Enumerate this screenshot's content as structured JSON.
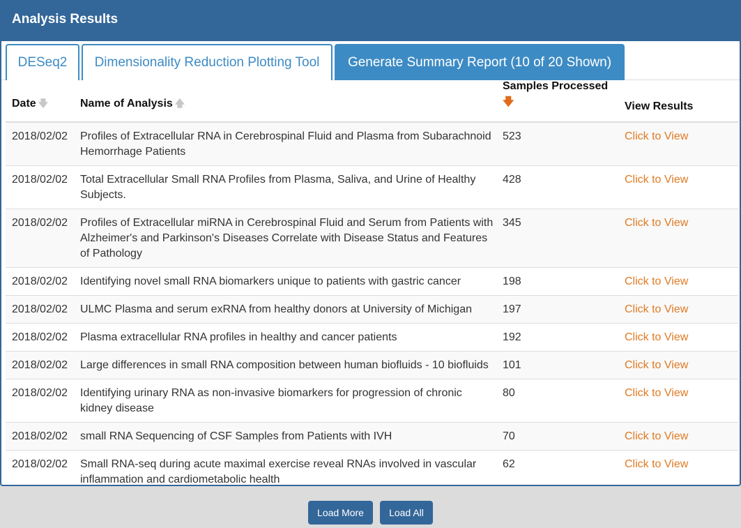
{
  "header": {
    "title": "Analysis Results"
  },
  "tabs": [
    {
      "label": "DESeq2"
    },
    {
      "label": "Dimensionality Reduction Plotting Tool"
    },
    {
      "label": "Generate Summary Report (10 of 20 Shown)"
    }
  ],
  "table": {
    "columns": {
      "date": "Date",
      "name": "Name of Analysis",
      "samples": "Samples Processed",
      "view": "View Results"
    },
    "rows": [
      {
        "date": "2018/02/02",
        "name": "Profiles of Extracellular RNA in Cerebrospinal Fluid and Plasma from Subarachnoid Hemorrhage Patients",
        "samples": "523",
        "view": "Click to View"
      },
      {
        "date": "2018/02/02",
        "name": "Total Extracellular Small RNA Profiles from Plasma, Saliva, and Urine of Healthy Subjects.",
        "samples": "428",
        "view": "Click to View"
      },
      {
        "date": "2018/02/02",
        "name": "Profiles of Extracellular miRNA in Cerebrospinal Fluid and Serum from Patients with Alzheimer's and Parkinson's Diseases Correlate with Disease Status and Features of Pathology",
        "samples": "345",
        "view": "Click to View"
      },
      {
        "date": "2018/02/02",
        "name": "Identifying novel small RNA biomarkers unique to patients with gastric cancer",
        "samples": "198",
        "view": "Click to View"
      },
      {
        "date": "2018/02/02",
        "name": "ULMC Plasma and serum exRNA from healthy donors at University of Michigan",
        "samples": "197",
        "view": "Click to View"
      },
      {
        "date": "2018/02/02",
        "name": "Plasma extracellular RNA profiles in healthy and cancer patients",
        "samples": "192",
        "view": "Click to View"
      },
      {
        "date": "2018/02/02",
        "name": "Large differences in small RNA composition between human biofluids - 10 biofluids",
        "samples": "101",
        "view": "Click to View"
      },
      {
        "date": "2018/02/02",
        "name": "Identifying urinary RNA as non-invasive biomarkers for progression of chronic kidney disease",
        "samples": "80",
        "view": "Click to View"
      },
      {
        "date": "2018/02/02",
        "name": "small RNA Sequencing of CSF Samples from Patients with IVH",
        "samples": "70",
        "view": "Click to View"
      },
      {
        "date": "2018/02/02",
        "name": "Small RNA-seq during acute maximal exercise reveal RNAs involved in vascular inflammation and cardiometabolic health",
        "samples": "62",
        "view": "Click to View"
      }
    ]
  },
  "buttons": {
    "load_more": "Load More",
    "load_all": "Load All"
  },
  "colors": {
    "primary": "#336699",
    "tab": "#3d8bc4",
    "link": "#e07a22",
    "sort_active": "#e06c1b"
  },
  "icons": {
    "sort_inactive": "arrow-down-icon",
    "sort_active": "arrow-down-icon"
  }
}
